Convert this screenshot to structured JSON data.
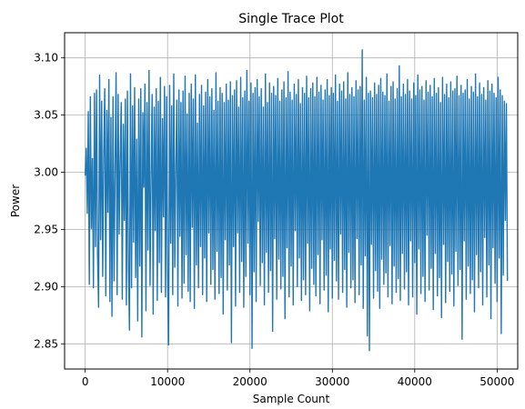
{
  "chart_data": {
    "type": "line",
    "title": "Single Trace Plot",
    "xlabel": "Sample Count",
    "ylabel": "Power",
    "xlim": [
      -2500,
      52500
    ],
    "ylim": [
      2.828,
      3.122
    ],
    "x_ticks": [
      0,
      10000,
      20000,
      30000,
      40000,
      50000
    ],
    "x_tick_labels": [
      "0",
      "10000",
      "20000",
      "30000",
      "40000",
      "50000"
    ],
    "y_ticks": [
      2.85,
      2.9,
      2.95,
      3.0,
      3.05,
      3.1
    ],
    "y_tick_labels": [
      "2.85",
      "2.90",
      "2.95",
      "3.00",
      "3.05",
      "3.10"
    ],
    "grid": true,
    "series_color": "#1f77b4",
    "series": [
      {
        "x_start": 0,
        "x_step": 125,
        "values": [
          2.997,
          3.021,
          2.964,
          3.053,
          2.902,
          3.066,
          2.951,
          3.012,
          2.899,
          3.069,
          2.935,
          3.072,
          2.928,
          2.882,
          3.085,
          2.941,
          3.062,
          2.909,
          3.015,
          3.073,
          2.892,
          3.054,
          2.965,
          3.081,
          2.887,
          3.048,
          2.874,
          3.066,
          2.905,
          3.003,
          3.087,
          2.893,
          3.068,
          2.946,
          3.012,
          3.061,
          2.889,
          3.042,
          2.958,
          3.064,
          2.884,
          3.071,
          2.917,
          2.862,
          3.086,
          2.899,
          3.058,
          2.939,
          3.074,
          2.908,
          3.029,
          2.87,
          3.064,
          2.918,
          3.073,
          2.856,
          3.052,
          2.987,
          3.077,
          2.879,
          3.061,
          2.932,
          3.089,
          2.901,
          2.997,
          3.068,
          2.876,
          3.057,
          2.949,
          3.073,
          2.888,
          3.062,
          2.921,
          3.083,
          2.895,
          3.047,
          2.961,
          3.075,
          2.891,
          3.066,
          2.912,
          2.849,
          3.076,
          2.938,
          3.058,
          2.893,
          3.086,
          2.917,
          3.005,
          3.063,
          2.883,
          3.072,
          2.944,
          3.061,
          2.89,
          3.071,
          2.903,
          3.084,
          2.928,
          3.051,
          2.896,
          3.069,
          2.887,
          3.077,
          2.952,
          3.064,
          2.881,
          3.085,
          2.919,
          3.043,
          2.899,
          3.068,
          2.935,
          3.076,
          2.893,
          3.058,
          2.925,
          3.07,
          2.887,
          3.081,
          2.947,
          3.066,
          2.902,
          3.073,
          2.915,
          3.054,
          2.889,
          3.087,
          2.931,
          3.062,
          2.894,
          3.074,
          2.908,
          3.069,
          2.876,
          3.061,
          2.941,
          3.077,
          2.897,
          3.063,
          2.919,
          3.079,
          2.851,
          3.067,
          2.935,
          3.072,
          2.883,
          3.08,
          2.947,
          3.057,
          2.895,
          3.083,
          2.922,
          3.065,
          2.882,
          3.071,
          2.909,
          3.089,
          2.938,
          3.062,
          2.893,
          3.078,
          2.846,
          3.069,
          2.913,
          3.074,
          2.887,
          3.081,
          2.957,
          3.066,
          2.901,
          3.073,
          2.921,
          3.057,
          2.884,
          3.086,
          2.93,
          3.061,
          2.895,
          3.078,
          2.914,
          3.069,
          2.861,
          3.075,
          2.942,
          3.067,
          2.889,
          3.082,
          2.924,
          3.062,
          2.898,
          3.072,
          2.909,
          3.079,
          2.872,
          3.065,
          2.934,
          3.088,
          2.891,
          3.07,
          2.918,
          3.063,
          2.884,
          3.077,
          2.949,
          3.068,
          2.9,
          3.081,
          2.925,
          3.06,
          2.888,
          3.074,
          2.906,
          3.069,
          2.893,
          3.084,
          2.938,
          3.065,
          2.879,
          3.073,
          2.916,
          3.078,
          2.902,
          3.066,
          2.892,
          3.083,
          2.928,
          3.07,
          2.885,
          3.076,
          2.941,
          3.063,
          2.897,
          3.072,
          2.91,
          3.081,
          2.878,
          3.067,
          2.933,
          3.074,
          2.89,
          3.069,
          2.923,
          3.085,
          2.905,
          3.062,
          2.889,
          3.077,
          2.946,
          3.071,
          2.895,
          3.079,
          2.915,
          3.064,
          2.882,
          3.087,
          2.93,
          3.068,
          2.899,
          3.074,
          2.906,
          3.066,
          2.886,
          3.08,
          2.942,
          3.072,
          2.893,
          3.075,
          2.919,
          3.107,
          2.881,
          3.063,
          2.927,
          3.083,
          2.857,
          3.069,
          2.844,
          3.071,
          2.937,
          3.065,
          2.89,
          3.078,
          2.914,
          3.068,
          2.896,
          3.076,
          2.881,
          3.082,
          2.924,
          3.07,
          2.902,
          3.067,
          2.912,
          3.086,
          2.891,
          3.062,
          2.936,
          3.075,
          2.885,
          3.079,
          2.918,
          3.064,
          2.895,
          3.073,
          2.907,
          3.093,
          2.888,
          3.066,
          2.929,
          3.077,
          2.898,
          3.068,
          2.913,
          3.081,
          2.884,
          3.071,
          2.94,
          3.064,
          2.891,
          3.078,
          2.921,
          3.067,
          2.876,
          3.085,
          2.933,
          3.072,
          2.894,
          3.075,
          2.909,
          3.063,
          2.887,
          3.08,
          2.945,
          3.07,
          2.897,
          3.076,
          2.916,
          3.066,
          2.88,
          3.082,
          2.929,
          3.069,
          2.892,
          3.074,
          2.908,
          3.061,
          2.873,
          3.083,
          2.937,
          3.068,
          2.886,
          3.077,
          2.922,
          3.065,
          2.896,
          3.079,
          2.911,
          3.071,
          2.883,
          3.073,
          2.931,
          3.084,
          2.901,
          3.067,
          2.915,
          3.076,
          2.854,
          3.069,
          2.94,
          3.072,
          2.889,
          3.081,
          2.918,
          3.064,
          2.894,
          3.075,
          2.906,
          3.07,
          2.878,
          3.086,
          2.928,
          3.066,
          2.899,
          3.078,
          2.913,
          3.068,
          2.884,
          3.074,
          2.943,
          3.063,
          2.891,
          3.08,
          2.919,
          3.071,
          2.872,
          3.077,
          2.934,
          3.069,
          2.903,
          3.065,
          2.887,
          3.083,
          2.925,
          3.072,
          2.859,
          3.067,
          2.91,
          3.062,
          2.958,
          3.06,
          2.905
        ]
      }
    ]
  }
}
